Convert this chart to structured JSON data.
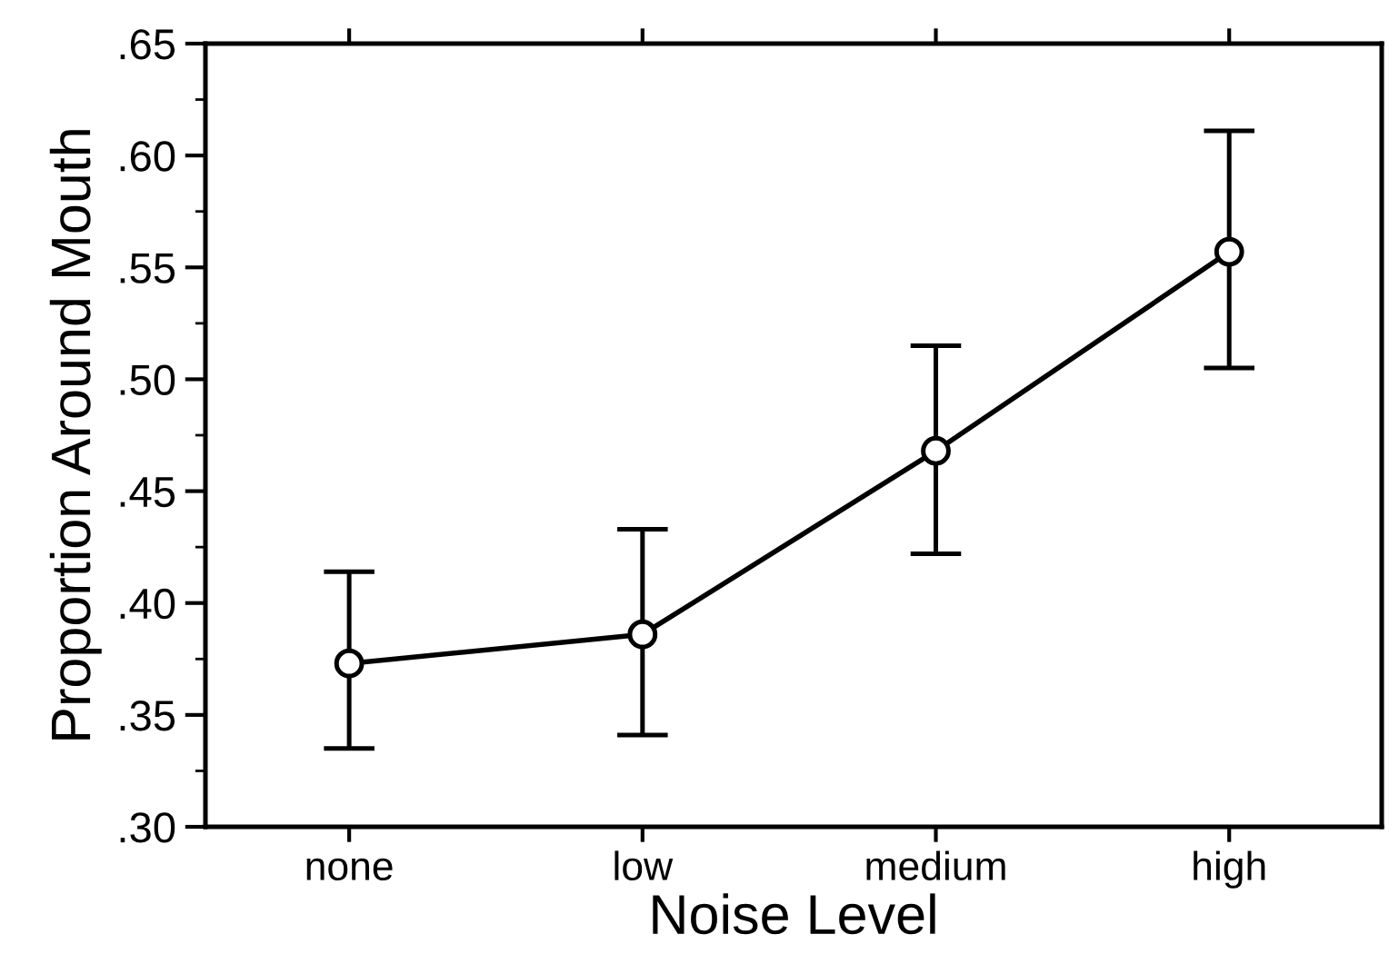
{
  "chart_data": {
    "type": "line",
    "xlabel": "Noise Level",
    "ylabel": "Proportion Around Mouth",
    "categories": [
      "none",
      "low",
      "medium",
      "high"
    ],
    "values": [
      0.373,
      0.386,
      0.468,
      0.557
    ],
    "errors": [
      [
        0.335,
        0.414
      ],
      [
        0.341,
        0.433
      ],
      [
        0.422,
        0.515
      ],
      [
        0.505,
        0.611
      ]
    ],
    "color": "#000000",
    "marker": "circle",
    "line_style": "solid",
    "ylim": [
      0.3,
      0.65
    ],
    "yticks": [
      {
        "value": 0.3,
        "label": ".30"
      },
      {
        "value": 0.35,
        "label": ".35"
      },
      {
        "value": 0.4,
        "label": ".40"
      },
      {
        "value": 0.45,
        "label": ".45"
      },
      {
        "value": 0.5,
        "label": ".50"
      },
      {
        "value": 0.55,
        "label": ".55"
      },
      {
        "value": 0.6,
        "label": ".60"
      },
      {
        "value": 0.65,
        "label": ".65"
      }
    ],
    "grid": false,
    "legend": false
  }
}
